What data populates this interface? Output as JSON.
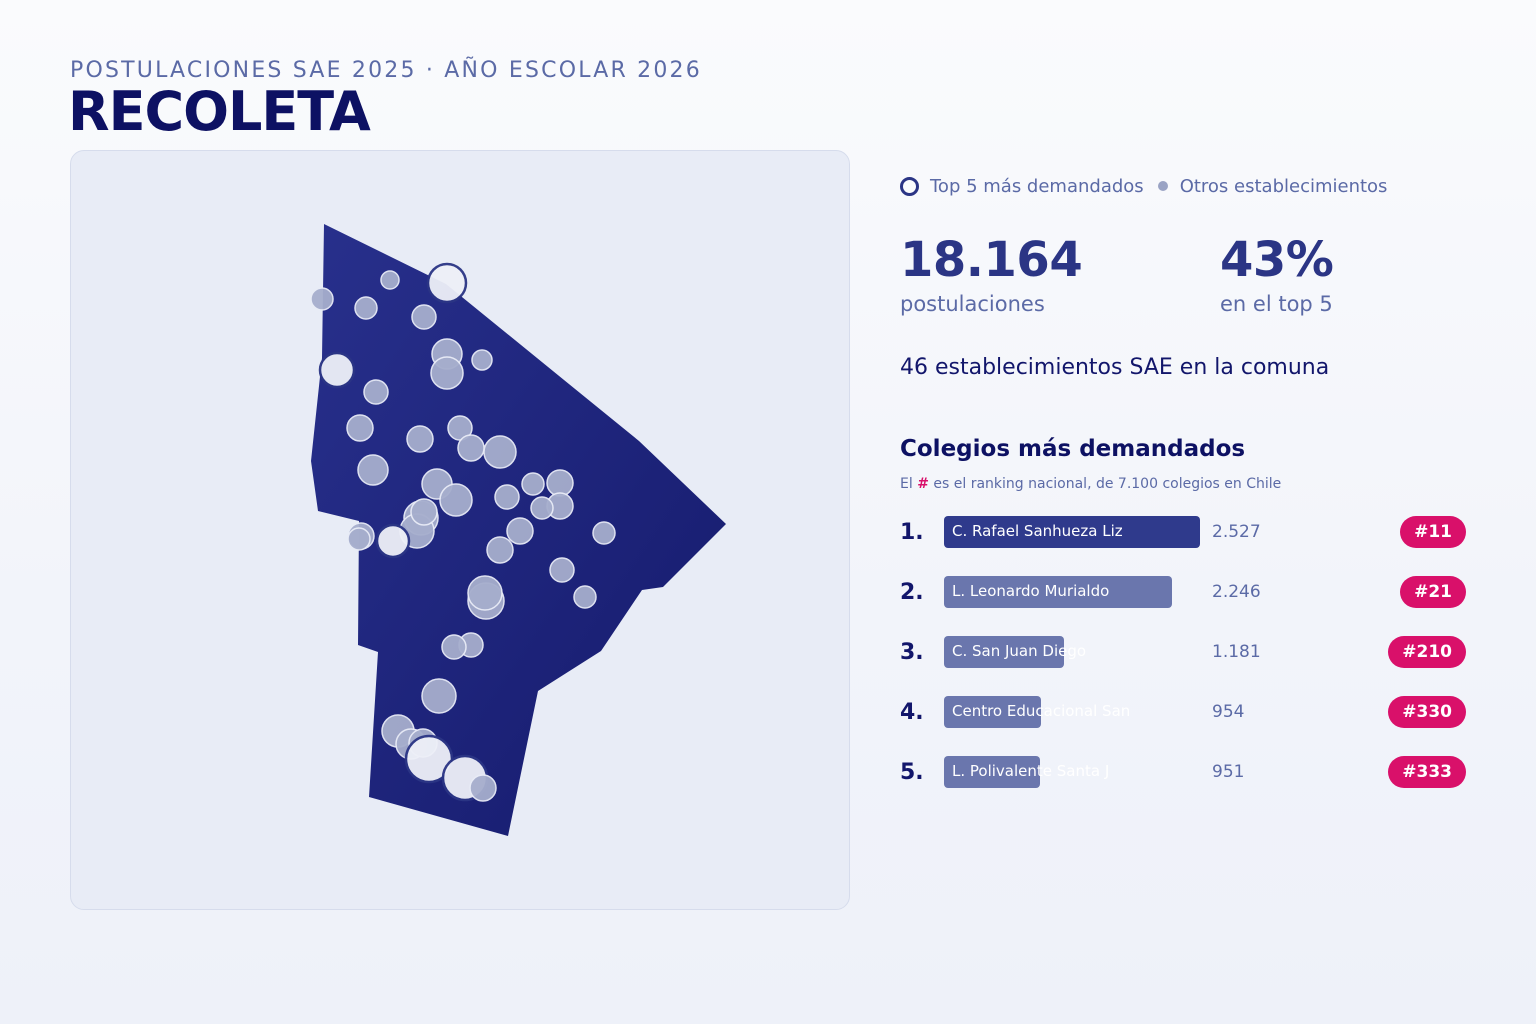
{
  "header": {
    "subtitle": "POSTULACIONES SAE 2025 · AÑO ESCOLAR 2026",
    "title": "RECOLETA"
  },
  "legend": {
    "top5_label": "Top 5 más demandados",
    "others_label": "Otros establecimientos"
  },
  "stats": {
    "applications_value": "18.164",
    "applications_label": "postulaciones",
    "top5_share_value": "43%",
    "top5_share_label": "en el top 5",
    "schools_count_text": "46 establecimientos SAE en la comuna"
  },
  "ranking": {
    "title": "Colegios más demandados",
    "note_prefix": "El",
    "note_hash": "#",
    "note_suffix": "es el ranking nacional, de 7.100 colegios en Chile",
    "max_applications": 2527,
    "rows": [
      {
        "position": "1.",
        "name": "C. Rafael Sanhueza Liz",
        "applications": 2527,
        "applications_text": "2.527",
        "rank": "#11"
      },
      {
        "position": "2.",
        "name": "L. Leonardo Murialdo",
        "applications": 2246,
        "applications_text": "2.246",
        "rank": "#21"
      },
      {
        "position": "3.",
        "name": "C. San Juan Diego",
        "applications": 1181,
        "applications_text": "1.181",
        "rank": "#210"
      },
      {
        "position": "4.",
        "name": "Centro Educacional San",
        "applications": 954,
        "applications_text": "954",
        "rank": "#330"
      },
      {
        "position": "5.",
        "name": "L. Polivalente Santa J",
        "applications": 951,
        "applications_text": "951",
        "rank": "#333"
      }
    ]
  },
  "map": {
    "commune": "RECOLETA",
    "fill_color": "#1c227a",
    "marker_color": "#a6aecd",
    "top5_marker_color": "#eef0f8",
    "accent_color": "#d9106a"
  }
}
